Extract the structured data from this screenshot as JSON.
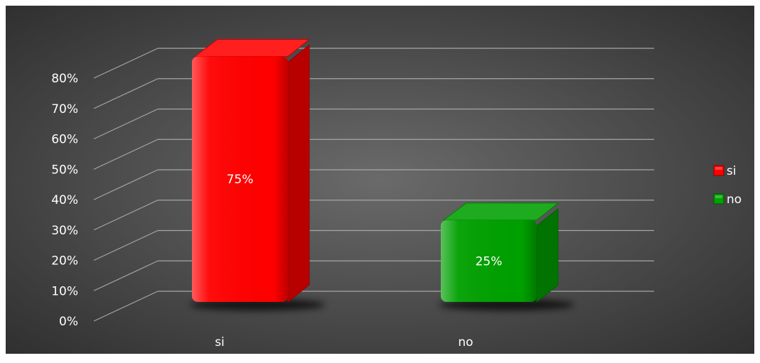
{
  "chart_data": {
    "type": "bar",
    "style": "3d-column",
    "categories": [
      "si",
      "no"
    ],
    "values": [
      0.75,
      0.25
    ],
    "value_format": "percent",
    "data_labels": [
      "75%",
      "25%"
    ],
    "ylim": [
      0,
      0.8
    ],
    "y_ticks": [
      "0%",
      "10%",
      "20%",
      "30%",
      "40%",
      "50%",
      "60%",
      "70%",
      "80%"
    ],
    "grid": true,
    "legend": {
      "placement": "right",
      "entries": [
        {
          "label": "si",
          "color": "#ff0000"
        },
        {
          "label": "no",
          "color": "#00a000"
        }
      ]
    },
    "colors": {
      "background_center": "#6a6a6a",
      "background_edge": "#2c2c2c",
      "bar_si": "#ff0000",
      "bar_no": "#00a000",
      "text": "#ffffff",
      "gridline": "#a6a6a6"
    }
  }
}
